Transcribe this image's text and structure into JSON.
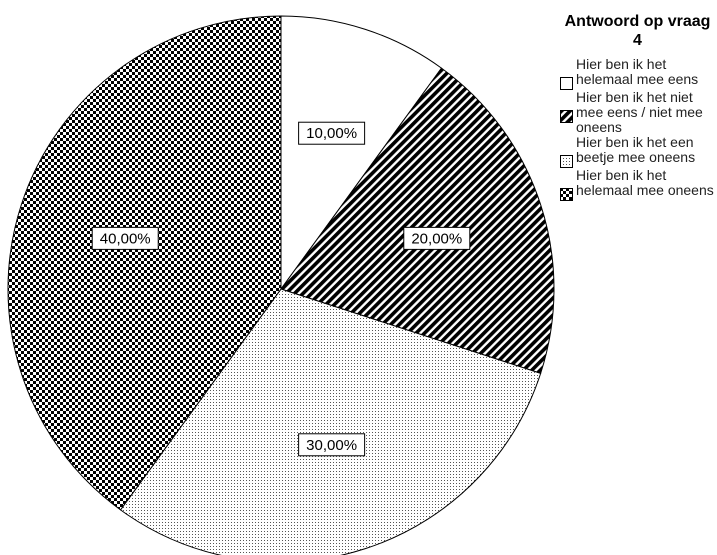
{
  "chart_data": {
    "type": "pie",
    "legend_title": "Antwoord op vraag 4",
    "legend_placement": "top-right",
    "slices": [
      {
        "label": "Hier ben ik het helemaal mee eens",
        "value": 10,
        "value_label": "10,00%",
        "pattern": "blank"
      },
      {
        "label": "Hier ben ik het niet mee eens / niet mee oneens",
        "value": 20,
        "value_label": "20,00%",
        "pattern": "diagonal-stripes"
      },
      {
        "label": "Hier ben ik het een beetje mee oneens",
        "value": 30,
        "value_label": "30,00%",
        "pattern": "dots"
      },
      {
        "label": "Hier ben ik het helemaal mee oneens",
        "value": 40,
        "value_label": "40,00%",
        "pattern": "checkerboard"
      }
    ]
  }
}
